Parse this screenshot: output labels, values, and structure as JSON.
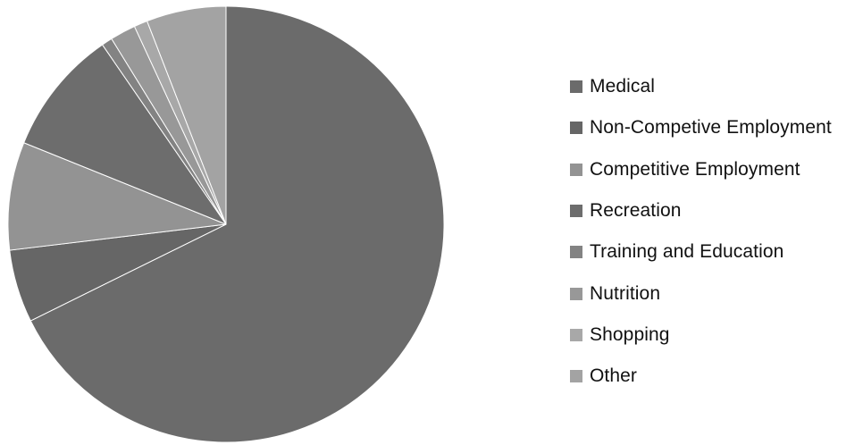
{
  "chart_data": {
    "type": "pie",
    "title": "",
    "categories": [
      "Medical",
      "Non-Competive Employment",
      "Competitive Employment",
      "Recreation",
      "Training and Education",
      "Nutrition",
      "Shopping",
      "Other"
    ],
    "values": [
      67.7,
      5.4,
      8.0,
      9.3,
      0.8,
      1.9,
      1.0,
      5.9
    ],
    "unit": "percent",
    "start_angle": "12 o'clock",
    "direction": "clockwise",
    "legend": {
      "position": "right"
    },
    "colors": [
      "#6b6b6b",
      "#666666",
      "#939393",
      "#6d6d6d",
      "#838383",
      "#989898",
      "#a8a8a8",
      "#a3a3a3"
    ]
  }
}
